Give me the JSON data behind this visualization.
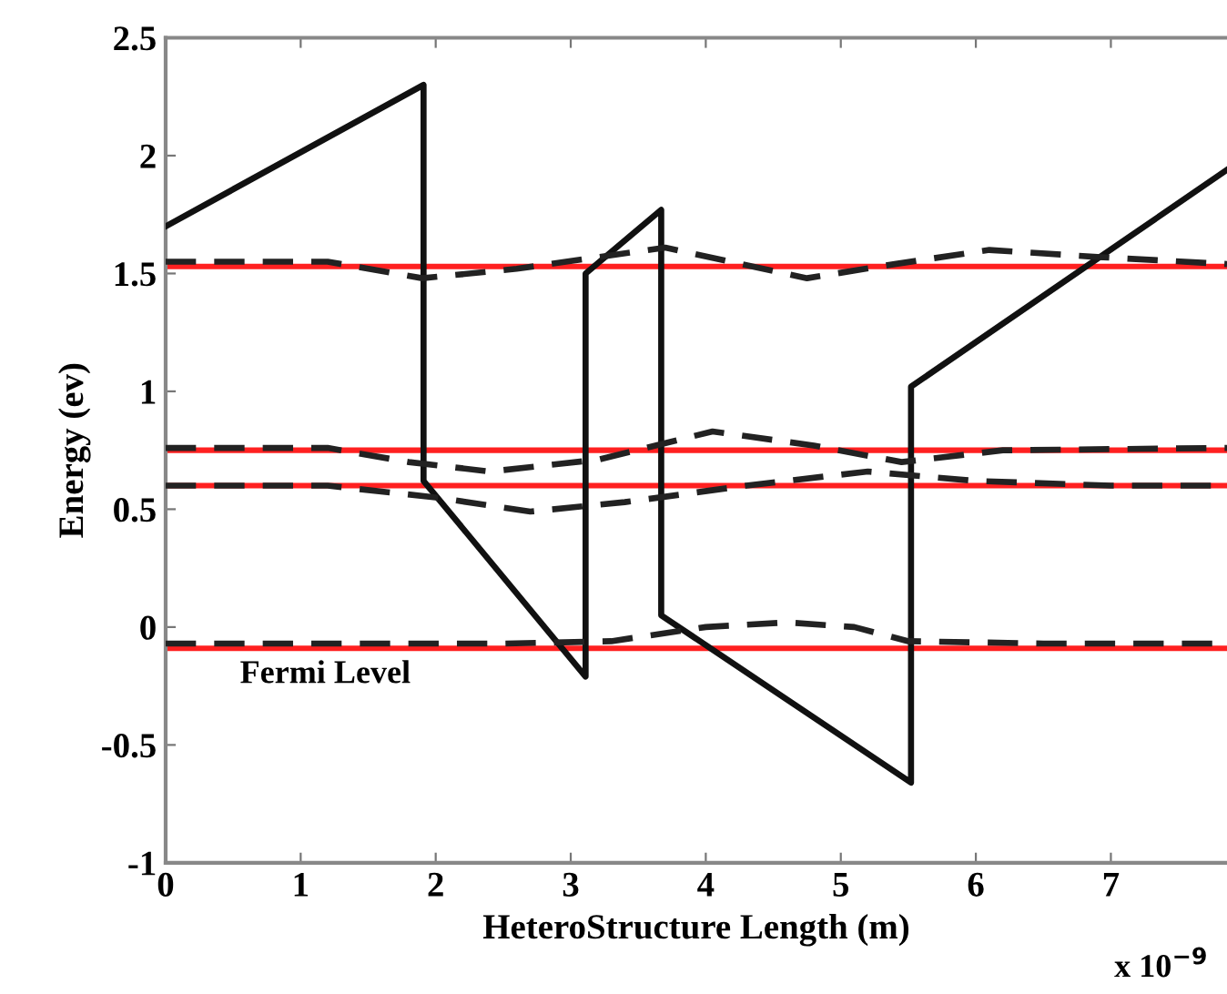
{
  "chart_data": {
    "type": "line",
    "xlabel": "HeteroStructure Length (m)",
    "ylabel": "Energy (ev)",
    "xlim": [
      0,
      7.86
    ],
    "ylim": [
      -1,
      2.5
    ],
    "xticks": [
      0,
      1,
      2,
      3,
      4,
      5,
      6,
      7
    ],
    "yticks": [
      -1,
      -0.5,
      0,
      0.5,
      1,
      1.5,
      2,
      2.5
    ],
    "grid": false,
    "series": [
      {
        "color": "#111111",
        "line_style": "solid",
        "x": [
          0,
          1.91,
          1.91,
          3.11,
          3.11,
          3.67,
          3.67,
          5.52,
          5.52,
          7.86
        ],
        "values": [
          1.7,
          2.3,
          0.62,
          -0.21,
          1.5,
          1.77,
          0.05,
          -0.66,
          1.02,
          1.94
        ]
      },
      {
        "color": "#222222",
        "line_style": "dashed",
        "x": [
          0,
          1.2,
          1.9,
          2.6,
          3.7,
          4.75,
          5.4,
          6.1,
          6.9,
          7.86
        ],
        "values": [
          1.55,
          1.55,
          1.48,
          1.52,
          1.61,
          1.48,
          1.54,
          1.6,
          1.57,
          1.54
        ]
      },
      {
        "color": "#222222",
        "line_style": "dashed",
        "x": [
          0,
          1.2,
          1.8,
          2.4,
          3.2,
          4.05,
          4.8,
          5.45,
          6.2,
          7.86
        ],
        "values": [
          0.76,
          0.76,
          0.7,
          0.66,
          0.71,
          0.83,
          0.77,
          0.7,
          0.75,
          0.76
        ]
      },
      {
        "color": "#222222",
        "line_style": "dashed",
        "x": [
          0,
          1.2,
          2.0,
          2.7,
          3.4,
          4.3,
          5.2,
          6.0,
          7.0,
          7.86
        ],
        "values": [
          0.6,
          0.6,
          0.55,
          0.49,
          0.53,
          0.6,
          0.66,
          0.62,
          0.6,
          0.6
        ]
      },
      {
        "color": "#222222",
        "line_style": "dashed",
        "x": [
          0,
          2.5,
          3.3,
          4.0,
          4.6,
          5.1,
          5.5,
          6.5,
          7.86
        ],
        "values": [
          -0.07,
          -0.07,
          -0.06,
          0.0,
          0.02,
          0.0,
          -0.06,
          -0.07,
          -0.07
        ]
      }
    ],
    "ref_lines": [
      {
        "axis": "y",
        "value": 1.53,
        "color": "#ff2020"
      },
      {
        "axis": "y",
        "value": 0.75,
        "color": "#ff2020"
      },
      {
        "axis": "y",
        "value": 0.6,
        "color": "#ff2020"
      },
      {
        "axis": "y",
        "value": -0.09,
        "color": "#ff2020",
        "label": "Fermi Level"
      }
    ],
    "annotations": [
      "x 10$^{−9}$"
    ]
  }
}
